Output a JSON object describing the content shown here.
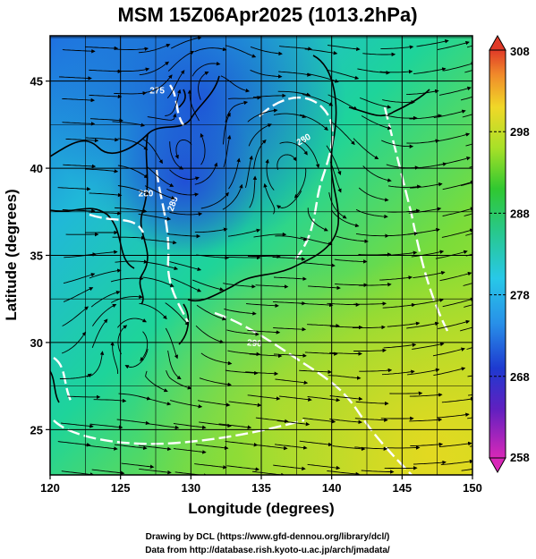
{
  "map": {
    "title": "MSM 15Z06Apr2025 (1013.2hPa)",
    "xlabel": "Longitude (degrees)",
    "ylabel": "Latitude  (degrees)",
    "lon_range": [
      120,
      150
    ],
    "lat_range": [
      22.4,
      47.6
    ],
    "lon_ticks": [
      "120",
      "125",
      "130",
      "135",
      "140",
      "145",
      "150"
    ],
    "lat_ticks": [
      "25",
      "30",
      "35",
      "40",
      "45"
    ],
    "contour_labels": [
      {
        "text": "285",
        "lon": 128.9,
        "lat": 37.9,
        "rot": -70
      },
      {
        "text": "280",
        "lon": 138.1,
        "lat": 41.5,
        "rot": -30
      },
      {
        "text": "275",
        "lon": 127.6,
        "lat": 44.3,
        "rot": 0
      },
      {
        "text": "290",
        "lon": 134.5,
        "lat": 29.8,
        "rot": 5
      },
      {
        "text": "280",
        "lon": 126.8,
        "lat": 38.4,
        "rot": 0
      }
    ]
  },
  "colorbar": {
    "labels": [
      "308",
      "298",
      "288",
      "278",
      "268",
      "258"
    ],
    "values": [
      308,
      298,
      288,
      278,
      268,
      258
    ],
    "colors": [
      "#e0402a",
      "#f28a30",
      "#f6d028",
      "#a8e22a",
      "#28c848",
      "#28c8a0",
      "#28c8e6",
      "#2a8ee6",
      "#2040c8",
      "#7020b0",
      "#c828b4"
    ]
  },
  "credits": {
    "line1": "Drawing by DCL (https://www.gfd-dennou.org/library/dcl/)",
    "line2": "Data from http://database.rish.kyoto-u.ac.jp/arch/jmadata/"
  }
}
